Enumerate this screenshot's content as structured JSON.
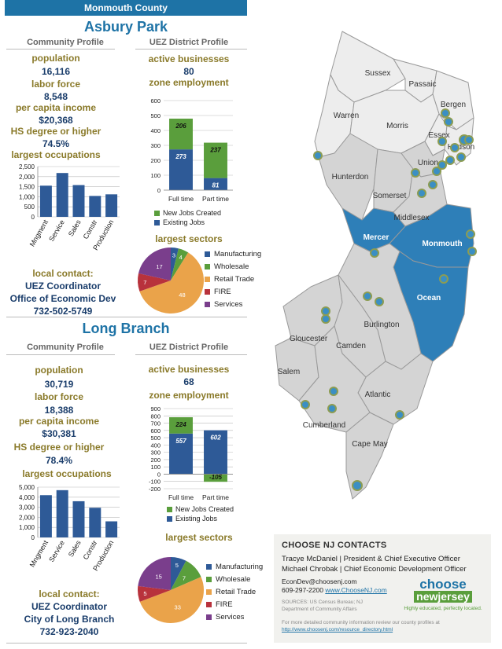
{
  "banner": "Monmouth County",
  "colors": {
    "blue": "#1e73a6",
    "navy": "#1a3d6b",
    "gold": "#8a7a2a",
    "green": "#5a9e3c",
    "bar": "#2e5a97",
    "map_highlight": "#2e7fb8",
    "map_light": "#ededed",
    "map_mid": "#d4d4d4"
  },
  "panels": [
    {
      "city": "Asbury Park",
      "community_heading": "Community Profile",
      "uez_heading": "UEZ District Profile",
      "stats": [
        {
          "label": "population",
          "value": "16,116"
        },
        {
          "label": "labor force",
          "value": "8,548"
        },
        {
          "label": "per capita income",
          "value": "$20,368"
        },
        {
          "label": "HS degree or higher",
          "value": "74.5%"
        }
      ],
      "occupations_title": "largest occupations",
      "active_label": "active businesses",
      "active_value": "80",
      "zone_title": "zone employment",
      "sectors_title": "largest sectors",
      "contact_label": "local contact:",
      "contact_lines": [
        "UEZ Coordinator",
        "Office of Economic Dev",
        "732-502-5749"
      ]
    },
    {
      "city": "Long Branch",
      "community_heading": "Community Profile",
      "uez_heading": "UEZ District Profile",
      "stats": [
        {
          "label": "population",
          "value": "30,719"
        },
        {
          "label": "labor force",
          "value": "18,388"
        },
        {
          "label": "per capita income",
          "value": "$30,381"
        },
        {
          "label": "HS degree or higher",
          "value": "78.4%"
        }
      ],
      "occupations_title": "largest occupations",
      "active_label": "active businesses",
      "active_value": "68",
      "zone_title": "zone employment",
      "sectors_title": "largest sectors",
      "contact_label": "local contact:",
      "contact_lines": [
        "UEZ Coordinator",
        "City of Long Branch",
        "732-923-2040"
      ]
    }
  ],
  "chart_data": [
    {
      "type": "bar",
      "title": "largest occupations",
      "city": "Asbury Park",
      "categories": [
        "Mngment",
        "Service",
        "Sales",
        "Constr",
        "Production"
      ],
      "values": [
        1550,
        2180,
        1580,
        1040,
        1120
      ],
      "ylim": [
        0,
        2500
      ],
      "yticks": [
        "0",
        "500",
        "1,000",
        "1,500",
        "2,000",
        "2,500"
      ]
    },
    {
      "type": "bar",
      "title": "zone employment",
      "city": "Asbury Park",
      "stacked": true,
      "categories": [
        "Full time",
        "Part time"
      ],
      "series": [
        {
          "name": "New Jobs Created",
          "values": [
            206,
            237
          ]
        },
        {
          "name": "Existing Jobs",
          "values": [
            273,
            81
          ]
        }
      ],
      "ylim": [
        0,
        600
      ],
      "yticks": [
        "0",
        "100",
        "200",
        "300",
        "400",
        "500",
        "600"
      ]
    },
    {
      "type": "pie",
      "title": "largest sectors",
      "city": "Asbury Park",
      "labels": [
        "Manufacturing",
        "Wholesale",
        "Retail Trade",
        "FIRE",
        "Services"
      ],
      "values": [
        3,
        4,
        48,
        7,
        17
      ]
    },
    {
      "type": "bar",
      "title": "largest occupations",
      "city": "Long Branch",
      "categories": [
        "Mngment",
        "Service",
        "Sales",
        "Constr",
        "Production"
      ],
      "values": [
        4200,
        4700,
        3600,
        2950,
        1600
      ],
      "ylim": [
        0,
        5000
      ],
      "yticks": [
        "0",
        "1,000",
        "2,000",
        "3,000",
        "4,000",
        "5,000"
      ]
    },
    {
      "type": "bar",
      "title": "zone employment",
      "city": "Long Branch",
      "stacked": true,
      "categories": [
        "Full time",
        "Part time"
      ],
      "series": [
        {
          "name": "New Jobs Created",
          "values": [
            224,
            -105
          ]
        },
        {
          "name": "Existing Jobs",
          "values": [
            557,
            602
          ]
        }
      ],
      "ylim": [
        -200,
        900
      ],
      "yticks": [
        "-200",
        "-100",
        "0",
        "100",
        "200",
        "300",
        "400",
        "500",
        "600",
        "700",
        "800",
        "900"
      ]
    },
    {
      "type": "pie",
      "title": "largest sectors",
      "city": "Long Branch",
      "labels": [
        "Manufacturing",
        "Wholesale",
        "Retail Trade",
        "FIRE",
        "Services"
      ],
      "values": [
        5,
        7,
        33,
        5,
        15
      ]
    }
  ],
  "map": {
    "counties": [
      "Sussex",
      "Passaic",
      "Bergen",
      "Warren",
      "Morris",
      "Essex",
      "Hudson",
      "Hunterdon",
      "Somerset",
      "Union",
      "Middlesex",
      "Mercer",
      "Monmouth",
      "Ocean",
      "Burlington",
      "Gloucester",
      "Camden",
      "Salem",
      "Atlantic",
      "Cumberland",
      "Cape May"
    ]
  },
  "contacts": {
    "title": "CHOOSE NJ CONTACTS",
    "line1": "Tracye McDaniel  | President & Chief Executive Officer",
    "line2": "Michael Chrobak | Chief Economic Development Officer",
    "email": "EconDev@choosenj.com",
    "phone": "609-297-2200",
    "web": "www.ChooseNJ.com",
    "sources": "SOURCES:  US  Census  Bureau;  NJ Department of Community Affairs",
    "more": "For more detailed community information review our county profiles at",
    "more_link": "http://www.choosenj.com/resource_directory.html",
    "logo_top": "choose",
    "logo_bottom": "newjersey",
    "tagline": "Highly educated, perfectly located."
  }
}
